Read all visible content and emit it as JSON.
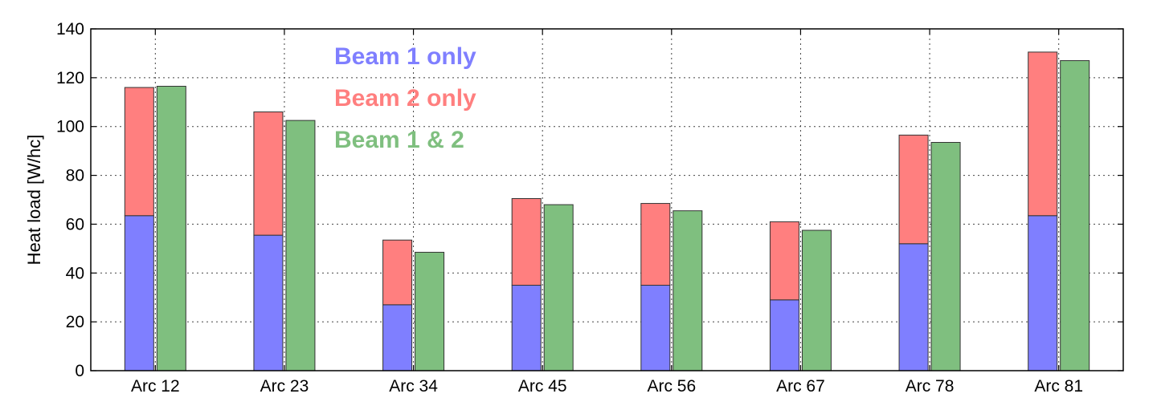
{
  "chart_data": {
    "type": "bar",
    "categories": [
      "Arc 12",
      "Arc 23",
      "Arc 34",
      "Arc 45",
      "Arc 56",
      "Arc 67",
      "Arc 78",
      "Arc 81"
    ],
    "series": [
      {
        "name": "Beam 1 only",
        "stack": "left",
        "color": "#7f7fff",
        "values": [
          63.5,
          55.5,
          27,
          35,
          35,
          29,
          52,
          63.5
        ]
      },
      {
        "name": "Beam 2 only",
        "stack": "left",
        "color": "#ff7f7f",
        "values": [
          52.5,
          50.5,
          26.5,
          35.5,
          33.5,
          32,
          44.5,
          67
        ]
      },
      {
        "name": "Beam 1 & 2",
        "stack": "right",
        "color": "#7fbf7f",
        "values": [
          116.5,
          102.5,
          48.5,
          68,
          65.5,
          57.5,
          93.5,
          127
        ]
      }
    ],
    "ylabel": "Heat load [W/hc]",
    "ylim": [
      0,
      140
    ],
    "yticks": [
      "0",
      "20",
      "40",
      "60",
      "80",
      "100",
      "120",
      "140"
    ],
    "grid": true,
    "legend_placement": "top-left"
  }
}
